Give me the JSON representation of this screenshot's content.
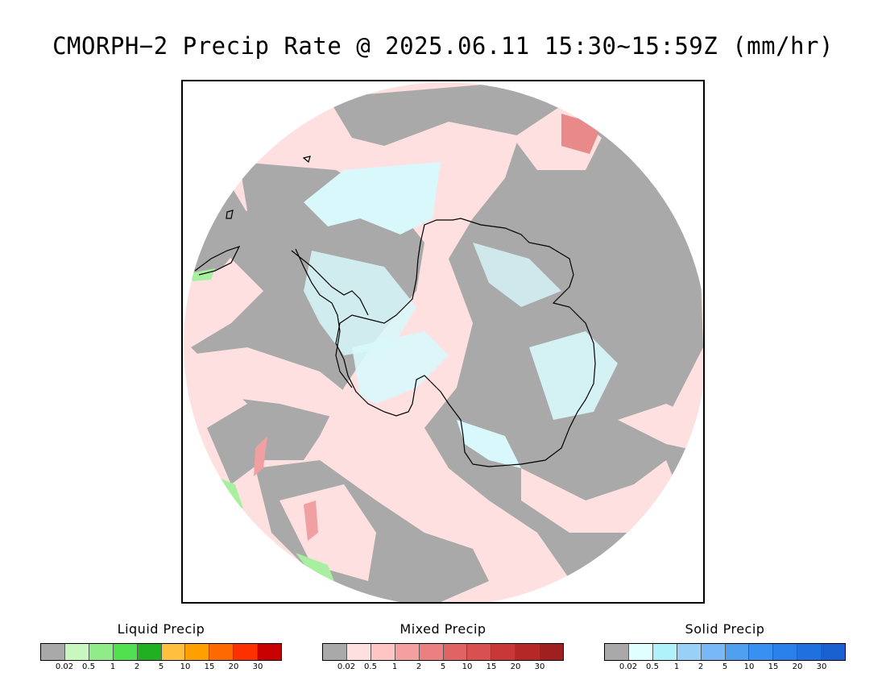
{
  "title": "CMORPH−2 Precip Rate @ 2025.06.11 15:30~15:59Z (mm/hr)",
  "map": {
    "projection": "south-polar-stereographic",
    "colors": {
      "no_precip": "#a9a9a9",
      "mixed_light": "#ffe0e0",
      "mixed_moderate": "#f4a6a6",
      "mixed_heavy": "#de6060",
      "solid_light": "#d8f8fc",
      "liquid_light": "#a8f0a0",
      "coastline": "#000000",
      "background": "#ffffff"
    }
  },
  "legends": [
    {
      "title": "Liquid Precip",
      "colors": [
        "#a9a9a9",
        "#c8f8c0",
        "#90ec88",
        "#50e050",
        "#20b020",
        "#ffc040",
        "#ffa000",
        "#ff6a00",
        "#ff3000",
        "#c80000"
      ],
      "ticks": [
        "0.02",
        "0.5",
        "1",
        "2",
        "5",
        "10",
        "15",
        "20",
        "30"
      ]
    },
    {
      "title": "Mixed Precip",
      "colors": [
        "#a9a9a9",
        "#ffe0e0",
        "#ffc4c4",
        "#f4a0a0",
        "#ec8080",
        "#e06464",
        "#d85050",
        "#c83838",
        "#b42828",
        "#a02020"
      ],
      "ticks": [
        "0.02",
        "0.5",
        "1",
        "2",
        "5",
        "10",
        "15",
        "20",
        "30"
      ]
    },
    {
      "title": "Solid Precip",
      "colors": [
        "#a9a9a9",
        "#e0ffff",
        "#b0f0f8",
        "#98d0f8",
        "#78b8f8",
        "#50a0f0",
        "#3890f0",
        "#2880e8",
        "#2070e0",
        "#1860d0"
      ],
      "ticks": [
        "0.02",
        "0.5",
        "1",
        "2",
        "5",
        "10",
        "15",
        "20",
        "30"
      ]
    }
  ]
}
